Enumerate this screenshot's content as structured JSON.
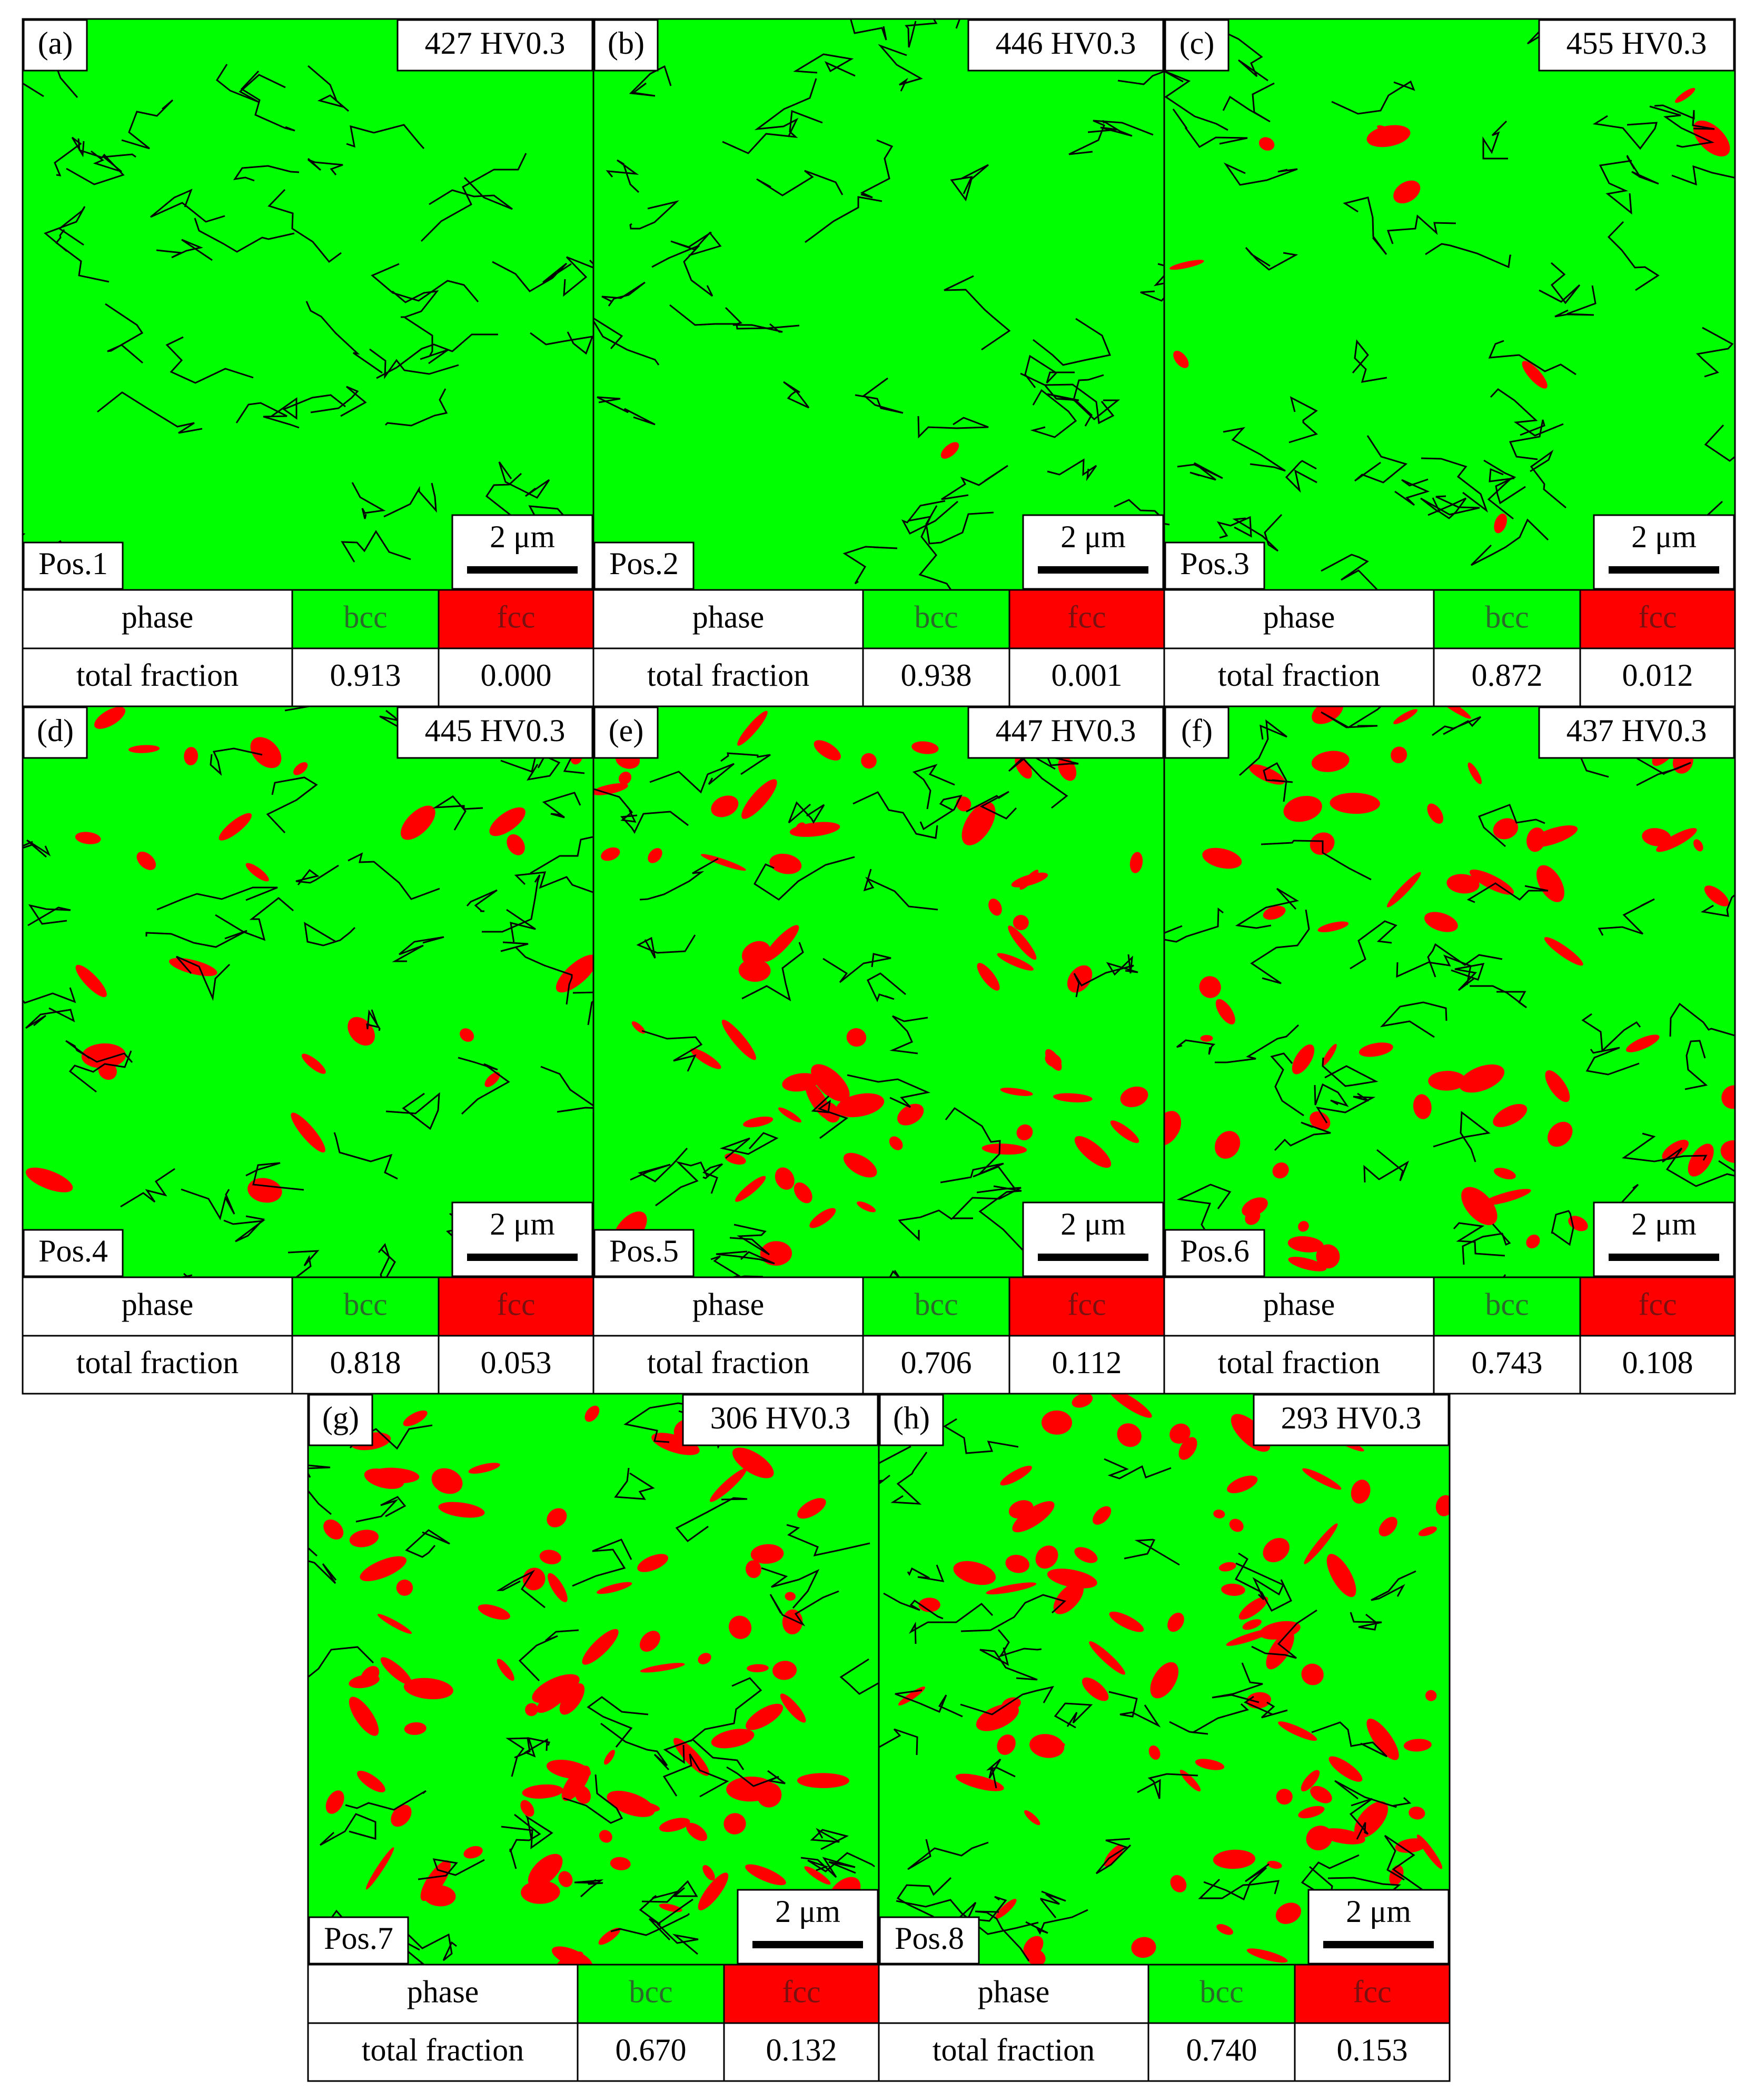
{
  "panels": [
    {
      "label": "(a)",
      "hardness": "427 HV0.3",
      "position": "Pos.1",
      "scale_bar": "2 μm",
      "table": {
        "header": [
          "phase",
          "bcc",
          "fcc"
        ],
        "row": [
          "total fraction",
          "0.913",
          "0.000"
        ]
      }
    },
    {
      "label": "(b)",
      "hardness": "446 HV0.3",
      "position": "Pos.2",
      "scale_bar": "2 μm",
      "table": {
        "header": [
          "phase",
          "bcc",
          "fcc"
        ],
        "row": [
          "total fraction",
          "0.938",
          "0.001"
        ]
      }
    },
    {
      "label": "(c)",
      "hardness": "455 HV0.3",
      "position": "Pos.3",
      "scale_bar": "2 μm",
      "table": {
        "header": [
          "phase",
          "bcc",
          "fcc"
        ],
        "row": [
          "total fraction",
          "0.872",
          "0.012"
        ]
      }
    },
    {
      "label": "(d)",
      "hardness": "445 HV0.3",
      "position": "Pos.4",
      "scale_bar": "2 μm",
      "table": {
        "header": [
          "phase",
          "bcc",
          "fcc"
        ],
        "row": [
          "total fraction",
          "0.818",
          "0.053"
        ]
      }
    },
    {
      "label": "(e)",
      "hardness": "447 HV0.3",
      "position": "Pos.5",
      "scale_bar": "2 μm",
      "table": {
        "header": [
          "phase",
          "bcc",
          "fcc"
        ],
        "row": [
          "total fraction",
          "0.706",
          "0.112"
        ]
      }
    },
    {
      "label": "(f)",
      "hardness": "437 HV0.3",
      "position": "Pos.6",
      "scale_bar": "2 μm",
      "table": {
        "header": [
          "phase",
          "bcc",
          "fcc"
        ],
        "row": [
          "total fraction",
          "0.743",
          "0.108"
        ]
      }
    },
    {
      "label": "(g)",
      "hardness": "306 HV0.3",
      "position": "Pos.7",
      "scale_bar": "2 μm",
      "table": {
        "header": [
          "phase",
          "bcc",
          "fcc"
        ],
        "row": [
          "total fraction",
          "0.670",
          "0.132"
        ]
      }
    },
    {
      "label": "(h)",
      "hardness": "293 HV0.3",
      "position": "Pos.8",
      "scale_bar": "2 μm",
      "table": {
        "header": [
          "phase",
          "bcc",
          "fcc"
        ],
        "row": [
          "total fraction",
          "0.740",
          "0.153"
        ]
      }
    }
  ]
}
